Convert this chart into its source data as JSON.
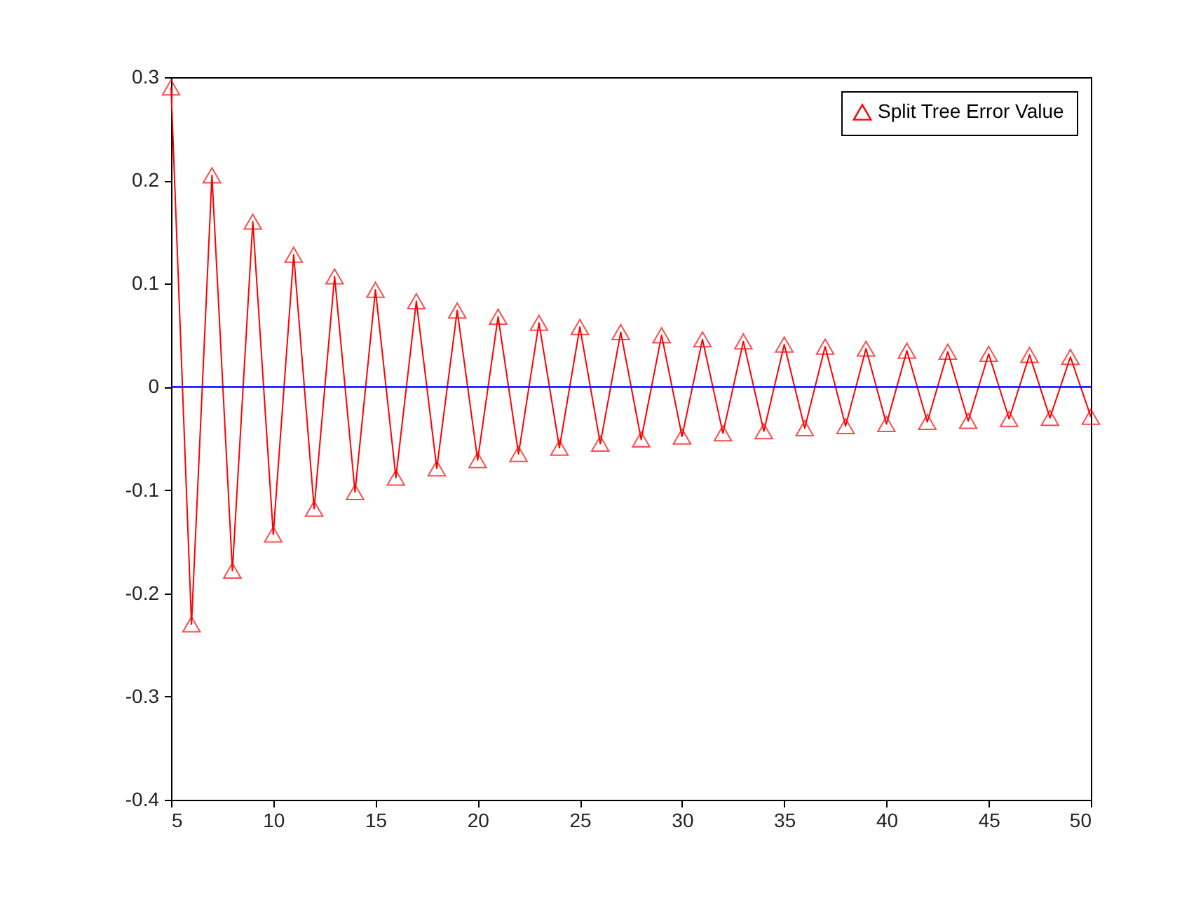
{
  "chart_data": {
    "type": "line",
    "x": [
      5,
      6,
      7,
      8,
      9,
      10,
      11,
      12,
      13,
      14,
      15,
      16,
      17,
      18,
      19,
      20,
      21,
      22,
      23,
      24,
      25,
      26,
      27,
      28,
      29,
      30,
      31,
      32,
      33,
      34,
      35,
      36,
      37,
      38,
      39,
      40,
      41,
      42,
      43,
      44,
      45,
      46,
      47,
      48,
      49,
      50
    ],
    "series": [
      {
        "name": "Split Tree Error Value",
        "color": "#ff0000",
        "values": [
          0.29,
          -0.23,
          0.205,
          -0.178,
          0.16,
          -0.143,
          0.128,
          -0.118,
          0.107,
          -0.102,
          0.094,
          -0.088,
          0.083,
          -0.079,
          0.074,
          -0.071,
          0.068,
          -0.065,
          0.062,
          -0.059,
          0.058,
          -0.055,
          0.053,
          -0.051,
          0.05,
          -0.048,
          0.046,
          -0.045,
          0.044,
          -0.043,
          0.041,
          -0.04,
          0.039,
          -0.038,
          0.037,
          -0.036,
          0.035,
          -0.034,
          0.034,
          -0.033,
          0.032,
          -0.031,
          0.031,
          -0.03,
          0.029,
          -0.029
        ]
      }
    ],
    "xlim": [
      5,
      50
    ],
    "xticks": [
      5,
      10,
      15,
      20,
      25,
      30,
      35,
      40,
      45,
      50
    ],
    "ylim": [
      -0.4,
      0.3
    ],
    "yticks": [
      -0.4,
      -0.3,
      -0.2,
      -0.1,
      0,
      0.1,
      0.2,
      0.3
    ],
    "ref_lines": [
      {
        "axis": "y",
        "value": 0,
        "color": "#0000ff"
      }
    ],
    "marker": "triangle",
    "line_style": "solid",
    "legend": "top right",
    "grid": false
  }
}
